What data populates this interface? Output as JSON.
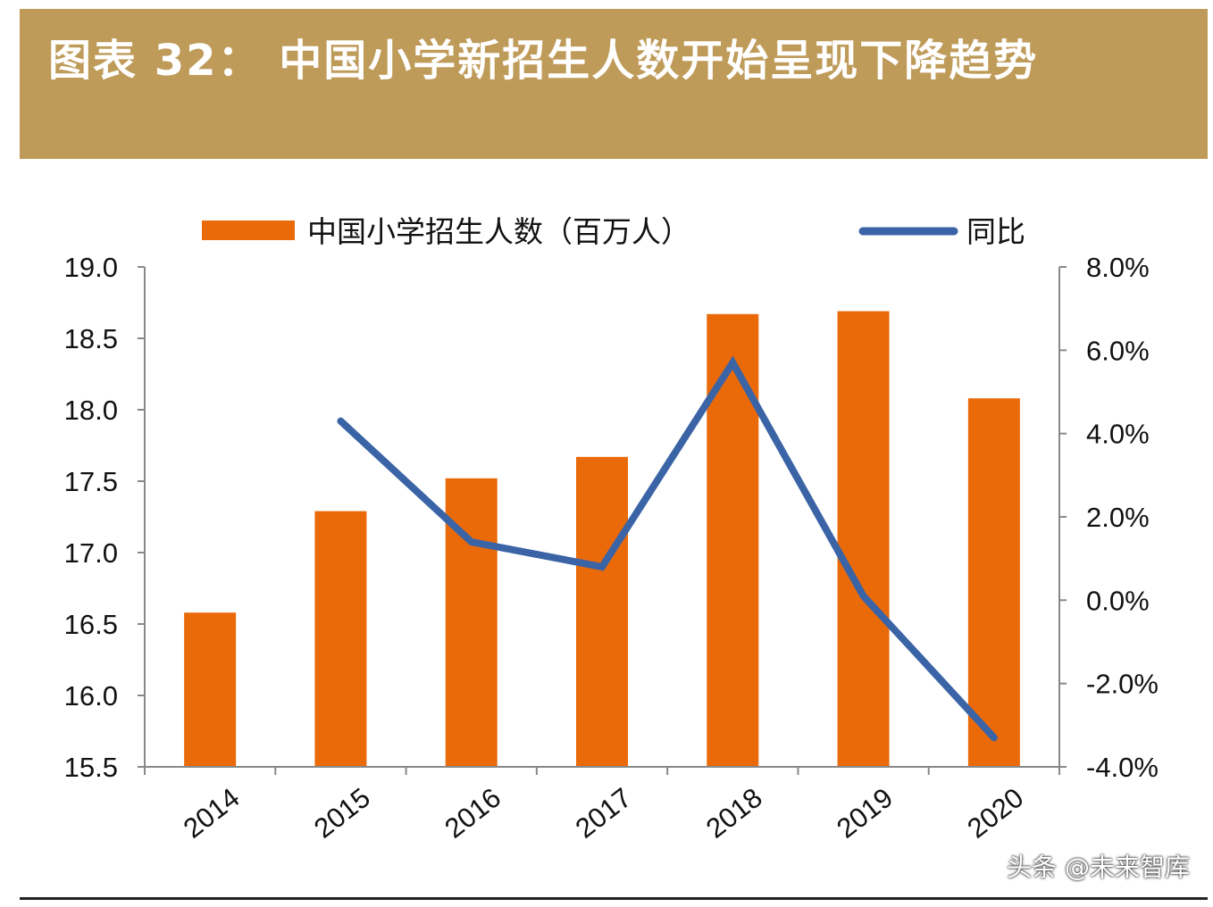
{
  "title": "图表 32： 中国小学新招生人数开始呈现下降趋势",
  "watermark": "头条 @未来智库",
  "colors": {
    "bar": "#ea6a0a",
    "line": "#3a64a6",
    "banner": "#bf9b5a"
  },
  "chart_data": {
    "type": "bar",
    "categories": [
      "2014",
      "2015",
      "2016",
      "2017",
      "2018",
      "2019",
      "2020"
    ],
    "series": [
      {
        "name": "中国小学招生人数（百万人）",
        "type": "bar",
        "axis": "left",
        "values": [
          16.58,
          17.29,
          17.52,
          17.67,
          18.67,
          18.69,
          18.08
        ]
      },
      {
        "name": "同比",
        "type": "line",
        "axis": "right",
        "values": [
          null,
          4.3,
          1.4,
          0.8,
          5.7,
          0.1,
          -3.3
        ]
      }
    ],
    "y_left": {
      "min": 15.5,
      "max": 19.0,
      "ticks": [
        "15.5",
        "16.0",
        "16.5",
        "17.0",
        "17.5",
        "18.0",
        "18.5",
        "19.0"
      ]
    },
    "y_right": {
      "min": -4.0,
      "max": 8.0,
      "ticks": [
        "-4.0%",
        "-2.0%",
        "0.0%",
        "2.0%",
        "4.0%",
        "6.0%",
        "8.0%"
      ]
    },
    "legend_position": "top",
    "grid": false
  }
}
